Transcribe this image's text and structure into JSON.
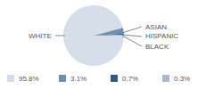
{
  "chart_data": {
    "type": "pie",
    "categories": [
      "WHITE",
      "ASIAN",
      "HISPANIC",
      "BLACK"
    ],
    "values": [
      95.8,
      3.1,
      0.7,
      0.3
    ],
    "value_labels": [
      "95.8%",
      "3.1%",
      "0.7%",
      "0.3%"
    ],
    "colors": [
      "#d5dee9",
      "#6f8fb0",
      "#2f5b82",
      "#a9b9ca"
    ]
  }
}
